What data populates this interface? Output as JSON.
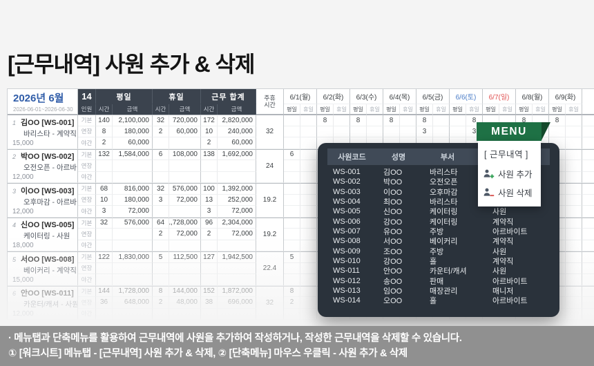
{
  "title": "[근무내역] 사원 추가 & 삭제",
  "colors": {
    "menu_green": "#1E7145",
    "menu_fold_green": "#14492B",
    "saturday_blue": "#4A7CC7",
    "sunday_red": "#E05252",
    "month_blue": "#2F5CA8",
    "header_dark": "#3B434E",
    "popup_bg": "#2A323B",
    "popup_band": "#404A57",
    "footer_bg": "#909090"
  },
  "sheet": {
    "month_label": "2026년 6월",
    "period": "2026-06-01~2026-06-30",
    "headcount": "14",
    "headcount_label": "인원",
    "groups": [
      {
        "label": "평일"
      },
      {
        "label": "휴일"
      },
      {
        "label": "근무 합계"
      }
    ],
    "sub_time": "시간",
    "sub_amount": "금액",
    "weekly_rest_header": [
      "주휴",
      "시간"
    ],
    "day_sub": [
      "평일",
      "휴일"
    ],
    "dates": [
      {
        "label": "6/1(월)",
        "tone": "normal"
      },
      {
        "label": "6/2(화)",
        "tone": "normal"
      },
      {
        "label": "6/3(수)",
        "tone": "normal"
      },
      {
        "label": "6/4(목)",
        "tone": "normal"
      },
      {
        "label": "6/5(금)",
        "tone": "normal"
      },
      {
        "label": "6/6(토)",
        "tone": "saturday"
      },
      {
        "label": "6/7(일)",
        "tone": "sunday"
      },
      {
        "label": "6/8(월)",
        "tone": "normal"
      },
      {
        "label": "6/9(화)",
        "tone": "normal"
      }
    ],
    "row_types": [
      "기본",
      "연장",
      "야간"
    ],
    "employees": [
      {
        "no": "1",
        "name": "김OO [WS-001]",
        "position": "바리스타 - 계약직",
        "wage": "15,000",
        "weekly_rest": "32",
        "rows": [
          [
            "140",
            "2,100,000",
            "32",
            "720,000",
            "172",
            "2,820,000"
          ],
          [
            "8",
            "180,000",
            "2",
            "60,000",
            "10",
            "240,000"
          ],
          [
            "2",
            "60,000",
            "",
            "",
            "2",
            "60,000"
          ]
        ],
        "days": [
          {
            "date": "6/2",
            "part": "평일",
            "type": "기본",
            "value": "8"
          },
          {
            "date": "6/3",
            "part": "평일",
            "type": "기본",
            "value": "8"
          },
          {
            "date": "6/4",
            "part": "평일",
            "type": "기본",
            "value": "8"
          },
          {
            "date": "6/5",
            "part": "평일",
            "type": "기본",
            "value": "8"
          },
          {
            "date": "6/6",
            "part": "휴일",
            "type": "기본",
            "value": "8"
          },
          {
            "date": "6/8",
            "part": "평일",
            "type": "기본",
            "value": "8"
          },
          {
            "date": "6/9",
            "part": "평일",
            "type": "기본",
            "value": "8"
          },
          {
            "date": "6/5",
            "part": "평일",
            "type": "연장",
            "value": "3"
          },
          {
            "date": "6/6",
            "part": "휴일",
            "type": "연장",
            "value": "3"
          }
        ]
      },
      {
        "no": "2",
        "name": "박OO [WS-002]",
        "position": "오전오픈 - 아르바이트",
        "wage": "12,000",
        "weekly_rest": "24",
        "rows": [
          [
            "132",
            "1,584,000",
            "6",
            "108,000",
            "138",
            "1,692,000"
          ],
          [
            "",
            "",
            "",
            "",
            "",
            ""
          ],
          [
            "",
            "",
            "",
            "",
            "",
            ""
          ]
        ],
        "days": [
          {
            "date": "6/1",
            "part": "평일",
            "type": "기본",
            "value": "6"
          },
          {
            "date": "6/9",
            "part": "평일",
            "type": "기본",
            "value": "6"
          }
        ]
      },
      {
        "no": "3",
        "name": "이OO [WS-003]",
        "position": "오후마감 - 아르바이트",
        "wage": "12,000",
        "weekly_rest": "19.2",
        "rows": [
          [
            "68",
            "816,000",
            "32",
            "576,000",
            "100",
            "1,392,000"
          ],
          [
            "10",
            "180,000",
            "3",
            "72,000",
            "13",
            "252,000"
          ],
          [
            "3",
            "72,000",
            "",
            "",
            "3",
            "72,000"
          ]
        ],
        "days": [
          {
            "date": "6/9",
            "part": "평일",
            "type": "기본",
            "value": "4"
          }
        ]
      },
      {
        "no": "4",
        "name": "신OO [WS-005]",
        "position": "케이터링 - 사원",
        "wage": "18,000",
        "weekly_rest": "19.2",
        "rows": [
          [
            "32",
            "576,000",
            "64",
            "1,728,000",
            "96",
            "2,304,000"
          ],
          [
            "",
            "",
            "2",
            "72,000",
            "2",
            "72,000"
          ],
          [
            "",
            "",
            "",
            "",
            "",
            ""
          ]
        ],
        "days": []
      },
      {
        "no": "5",
        "name": "서OO [WS-008]",
        "position": "베이커리 - 계약직",
        "wage": "15,000",
        "weekly_rest": "22.4",
        "rows": [
          [
            "122",
            "1,830,000",
            "5",
            "112,500",
            "127",
            "1,942,500"
          ],
          [
            "",
            "",
            "",
            "",
            "",
            ""
          ],
          [
            "",
            "",
            "",
            "",
            "",
            ""
          ]
        ],
        "days": [
          {
            "date": "6/1",
            "part": "평일",
            "type": "기본",
            "value": "5"
          },
          {
            "date": "6/9",
            "part": "평일",
            "type": "기본",
            "value": "5"
          }
        ]
      },
      {
        "no": "6",
        "name": "안OO [WS-011]",
        "position": "카운터/캐셔 - 사원",
        "wage": "12,000",
        "weekly_rest": "32",
        "rows": [
          [
            "144",
            "1,728,000",
            "8",
            "144,000",
            "152",
            "1,872,000"
          ],
          [
            "36",
            "648,000",
            "2",
            "48,000",
            "38",
            "696,000"
          ],
          [
            "",
            "",
            "",
            "",
            "",
            ""
          ]
        ],
        "days": [
          {
            "date": "6/1",
            "part": "평일",
            "type": "기본",
            "value": "8"
          },
          {
            "date": "6/1",
            "part": "평일",
            "type": "연장",
            "value": "2"
          },
          {
            "date": "6/9",
            "part": "평일",
            "type": "기본",
            "value": "8"
          },
          {
            "date": "6/9",
            "part": "평일",
            "type": "연장",
            "value": "2"
          }
        ]
      }
    ]
  },
  "popup": {
    "headers": [
      "사원코드",
      "성명",
      "부서",
      ""
    ],
    "rows": [
      [
        "WS-001",
        "김OO",
        "바리스타",
        ""
      ],
      [
        "WS-002",
        "박OO",
        "오전오픈",
        ""
      ],
      [
        "WS-003",
        "이OO",
        "오후마감",
        ""
      ],
      [
        "WS-004",
        "최OO",
        "바리스타",
        "사원"
      ],
      [
        "WS-005",
        "신OO",
        "케이터링",
        "사원"
      ],
      [
        "WS-006",
        "강OO",
        "케이터링",
        "계약직"
      ],
      [
        "WS-007",
        "유OO",
        "주방",
        "아르바이트"
      ],
      [
        "WS-008",
        "서OO",
        "베이커리",
        "계약직"
      ],
      [
        "WS-009",
        "조OO",
        "주방",
        "사원"
      ],
      [
        "WS-010",
        "강OO",
        "홀",
        "계약직"
      ],
      [
        "WS-011",
        "안OO",
        "카운터/캐셔",
        "사원"
      ],
      [
        "WS-012",
        "송OO",
        "판매",
        "아르바이트"
      ],
      [
        "WS-013",
        "임OO",
        "매장관리",
        "매니저"
      ],
      [
        "WS-014",
        "오OO",
        "홀",
        "아르바이트"
      ]
    ]
  },
  "menu": {
    "title": "MENU",
    "section": "[ 근무내역 ]",
    "items": [
      {
        "label": "사원 추가",
        "icon": "person-add-icon"
      },
      {
        "label": "사원 삭제",
        "icon": "person-remove-icon"
      }
    ]
  },
  "footer": {
    "line1": "· 메뉴탭과 단축메뉴를 활용하여 근무내역에 사원을 추가하여 작성하거나, 작성한 근무내역을 삭제할 수 있습니다.",
    "line2": "① [워크시트] 메뉴탭 - [근무내역] 사원 추가 & 삭제, ② [단축메뉴] 마우스 우클릭 - 사원 추가 & 삭제"
  }
}
